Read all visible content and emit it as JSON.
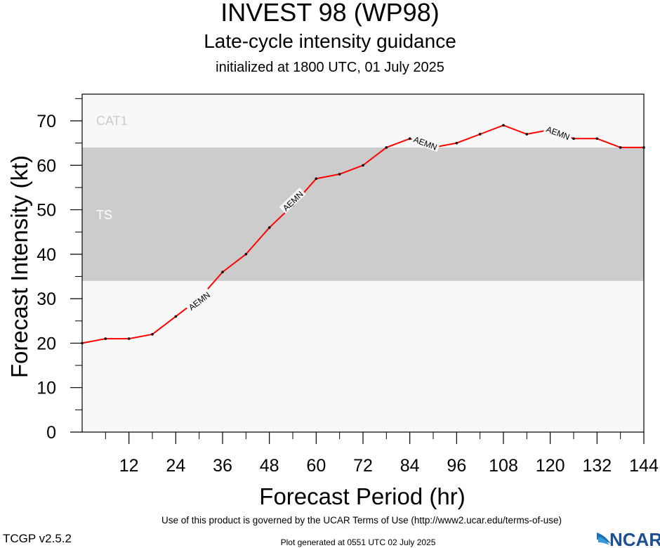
{
  "header": {
    "title": "INVEST 98 (WP98)",
    "subtitle": "Late-cycle intensity guidance",
    "initialized": "initialized at 1800 UTC, 01 July 2025"
  },
  "footer": {
    "terms": "Use of this product is governed by the UCAR Terms of Use (http://www2.ucar.edu/terms-of-use)",
    "version": "TCGP v2.5.2",
    "generated": "Plot generated at 0551 UTC   02 July 2025",
    "logo_text": "NCAR"
  },
  "colors": {
    "plot_background": "#f8f8f8",
    "ts_band": "#cccccc",
    "line": "#ff0000",
    "marker": "#000000",
    "band_label": "#ffffff",
    "cat1_label": "#cccccc"
  },
  "chart_data": {
    "type": "line",
    "xlabel": "Forecast Period (hr)",
    "ylabel": "Forecast Intensity (kt)",
    "xlim": [
      0,
      144
    ],
    "ylim": [
      0,
      76
    ],
    "xticks": [
      12,
      24,
      36,
      48,
      60,
      72,
      84,
      96,
      108,
      120,
      132,
      144
    ],
    "xtick_labels": [
      "12",
      "24",
      "36",
      "48",
      "60",
      "72",
      "84",
      "96",
      "108",
      "120",
      "132",
      "144"
    ],
    "yticks": [
      0,
      10,
      20,
      30,
      40,
      50,
      60,
      70
    ],
    "ytick_labels": [
      "0",
      "10",
      "20",
      "30",
      "40",
      "50",
      "60",
      "70"
    ],
    "bands": [
      {
        "label": "TS",
        "y0": 34,
        "y1": 64
      },
      {
        "label": "CAT1",
        "y0": 64,
        "y1": 83
      }
    ],
    "series": [
      {
        "name": "AEMN",
        "x": [
          0,
          6,
          12,
          18,
          24,
          30,
          36,
          42,
          48,
          54,
          60,
          66,
          72,
          78,
          84,
          90,
          96,
          102,
          108,
          114,
          120,
          126,
          132,
          138,
          144
        ],
        "values": [
          20,
          21,
          21,
          22,
          26,
          30,
          36,
          40,
          46,
          51,
          57,
          58,
          60,
          64,
          66,
          64,
          65,
          67,
          69,
          67,
          68,
          66,
          66,
          64,
          64
        ]
      }
    ],
    "line_labels": [
      {
        "text": "AEMN",
        "x": 30,
        "y": 29.5
      },
      {
        "text": "AEMN",
        "x": 54,
        "y": 52
      },
      {
        "text": "AEMN",
        "x": 88,
        "y": 65
      },
      {
        "text": "AEMN",
        "x": 122,
        "y": 67.3
      }
    ],
    "grid": false
  }
}
